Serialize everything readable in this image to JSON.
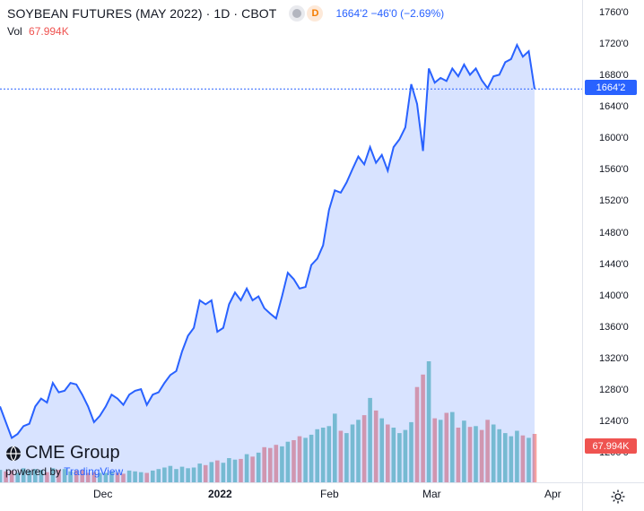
{
  "header": {
    "symbol": "SOYBEAN FUTURES (MAY 2022) · 1D · CBOT",
    "badge": "D",
    "price_change": "1664'2  −46'0 (−2.69%)"
  },
  "volume": {
    "label": "Vol",
    "value": "67.994K"
  },
  "y_axis": {
    "ticks": [
      "1760'0",
      "1720'0",
      "1680'0",
      "1640'0",
      "1600'0",
      "1560'0",
      "1520'0",
      "1480'0",
      "1440'0",
      "1400'0",
      "1360'0",
      "1320'0",
      "1280'0",
      "1240'0",
      "1200'0"
    ]
  },
  "x_axis": {
    "ticks": [
      "Dec",
      "2022",
      "Feb",
      "Mar",
      "Apr"
    ]
  },
  "last_price_label": "1664'2",
  "volume_label": "67.994K",
  "logo": {
    "brand": "CME Group",
    "powered_by": "powered by",
    "tv": "TradingView"
  },
  "colors": {
    "line": "#2962ff",
    "fill": "#2962ff",
    "vol_up": "#26a69a",
    "vol_down": "#ef5350"
  },
  "chart_data": {
    "type": "area",
    "title": "SOYBEAN FUTURES (MAY 2022) · 1D · CBOT",
    "ylim": [
      1200,
      1760
    ],
    "series": [
      {
        "name": "Price",
        "values": [
          1260,
          1240,
          1220,
          1225,
          1235,
          1238,
          1260,
          1270,
          1265,
          1290,
          1278,
          1280,
          1290,
          1288,
          1275,
          1260,
          1240,
          1248,
          1260,
          1275,
          1270,
          1262,
          1275,
          1280,
          1282,
          1262,
          1275,
          1278,
          1290,
          1300,
          1305,
          1330,
          1350,
          1360,
          1395,
          1390,
          1395,
          1355,
          1360,
          1390,
          1405,
          1395,
          1410,
          1395,
          1400,
          1385,
          1378,
          1372,
          1400,
          1430,
          1422,
          1410,
          1412,
          1440,
          1448,
          1465,
          1510,
          1535,
          1532,
          1545,
          1562,
          1578,
          1568,
          1590,
          1570,
          1580,
          1560,
          1590,
          1600,
          1615,
          1670,
          1645,
          1585,
          1690,
          1672,
          1678,
          1674,
          1690,
          1680,
          1695,
          1682,
          1690,
          1675,
          1665,
          1680,
          1682,
          1698,
          1702,
          1720,
          1705,
          1712,
          1664
        ]
      },
      {
        "name": "Vol",
        "values": [
          16,
          14,
          15,
          12,
          18,
          15,
          17,
          16,
          13,
          18,
          16,
          17,
          14,
          15,
          16,
          12,
          13,
          12,
          12,
          14,
          12,
          11,
          15,
          14,
          13,
          12,
          15,
          17,
          19,
          21,
          17,
          20,
          18,
          19,
          24,
          22,
          26,
          28,
          25,
          31,
          29,
          30,
          36,
          33,
          38,
          45,
          44,
          48,
          46,
          52,
          54,
          59,
          57,
          61,
          68,
          70,
          72,
          88,
          66,
          63,
          74,
          80,
          86,
          108,
          92,
          82,
          74,
          70,
          63,
          67,
          77,
          122,
          138,
          155,
          82,
          80,
          89,
          90,
          70,
          79,
          71,
          72,
          67,
          80,
          74,
          68,
          63,
          59,
          66,
          60,
          57,
          62
        ]
      }
    ]
  }
}
